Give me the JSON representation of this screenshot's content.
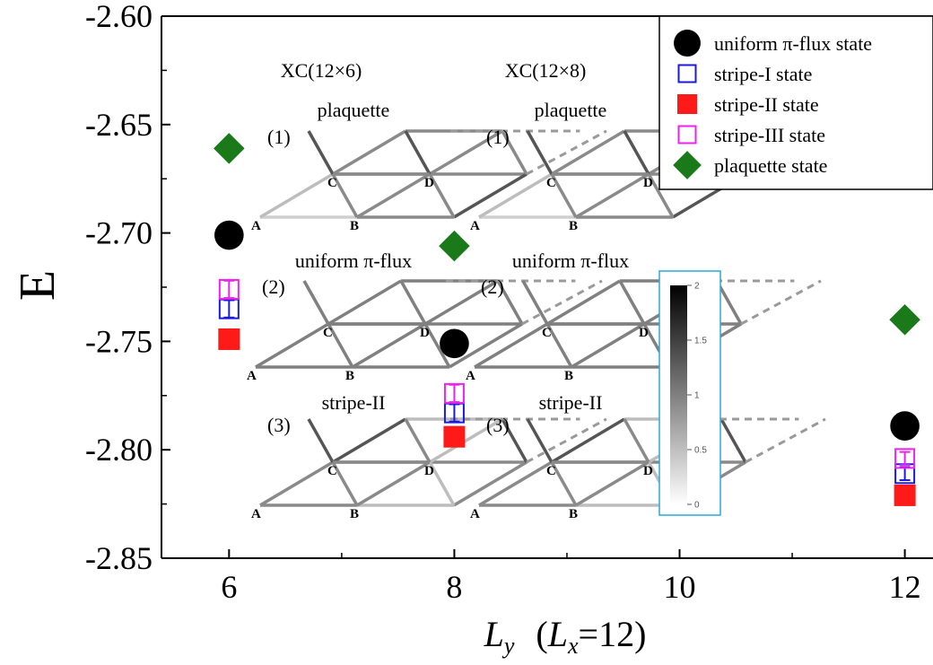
{
  "chart_data": {
    "type": "scatter",
    "xlabel_main": "L",
    "xlabel_main_sub": "y",
    "xlabel_paren_open": "(",
    "xlabel_inner": "L",
    "xlabel_inner_sub": "x",
    "xlabel_inner_rest": "=12)",
    "ylabel": "E",
    "xlim": [
      5.4,
      12.25
    ],
    "ylim": [
      -2.85,
      -2.6
    ],
    "xticks": [
      "6",
      "8",
      "10",
      "12"
    ],
    "xtick_values": [
      6,
      8,
      10,
      12
    ],
    "yticks": [
      "-2.60",
      "-2.65",
      "-2.70",
      "-2.75",
      "-2.80",
      "-2.85"
    ],
    "ytick_values": [
      -2.6,
      -2.65,
      -2.7,
      -2.75,
      -2.8,
      -2.85
    ],
    "legend_position": "top-right",
    "series": [
      {
        "name": "uniform π-flux state",
        "marker": "circle-filled",
        "color": "#000000",
        "x": [
          6,
          8,
          12
        ],
        "y": [
          -2.701,
          -2.751,
          -2.789
        ]
      },
      {
        "name": "stripe-I state",
        "marker": "square-open",
        "color": "#1a1adc",
        "x": [
          6,
          8,
          12
        ],
        "y": [
          -2.735,
          -2.783,
          -2.811
        ],
        "err": [
          0.004,
          0.004,
          0.003
        ]
      },
      {
        "name": "stripe-II state",
        "marker": "square-filled",
        "color": "#ff1a1a",
        "x": [
          6,
          8,
          12
        ],
        "y": [
          -2.749,
          -2.794,
          -2.821
        ]
      },
      {
        "name": "stripe-III state",
        "marker": "square-open",
        "color": "#ee22ee",
        "x": [
          6,
          8,
          12
        ],
        "y": [
          -2.726,
          -2.774,
          -2.804
        ],
        "err": [
          0.004,
          0.004,
          0.003
        ]
      },
      {
        "name": "plaquette state",
        "marker": "diamond-filled",
        "color": "#1a7a1a",
        "x": [
          6,
          8,
          12
        ],
        "y": [
          -2.661,
          -2.706,
          -2.74
        ]
      }
    ],
    "insets": {
      "left_title": "XC(12×6)",
      "right_title": "XC(12×8)",
      "rows": [
        {
          "index": "(1)",
          "label": "plaquette",
          "label_color": "#1a8a1a"
        },
        {
          "index": "(2)",
          "label": "uniform π-flux",
          "label_color": "#000000"
        },
        {
          "index": "(3)",
          "label": "stripe-II",
          "label_color": "#ee1111"
        }
      ],
      "sites": [
        "A",
        "B",
        "C",
        "D"
      ]
    },
    "colorbar": {
      "ticks": [
        "2",
        "1.5",
        "1",
        "0.5",
        "0"
      ],
      "tick_values": [
        2,
        1.5,
        1,
        0.5,
        0
      ],
      "range": [
        0,
        2
      ]
    }
  }
}
